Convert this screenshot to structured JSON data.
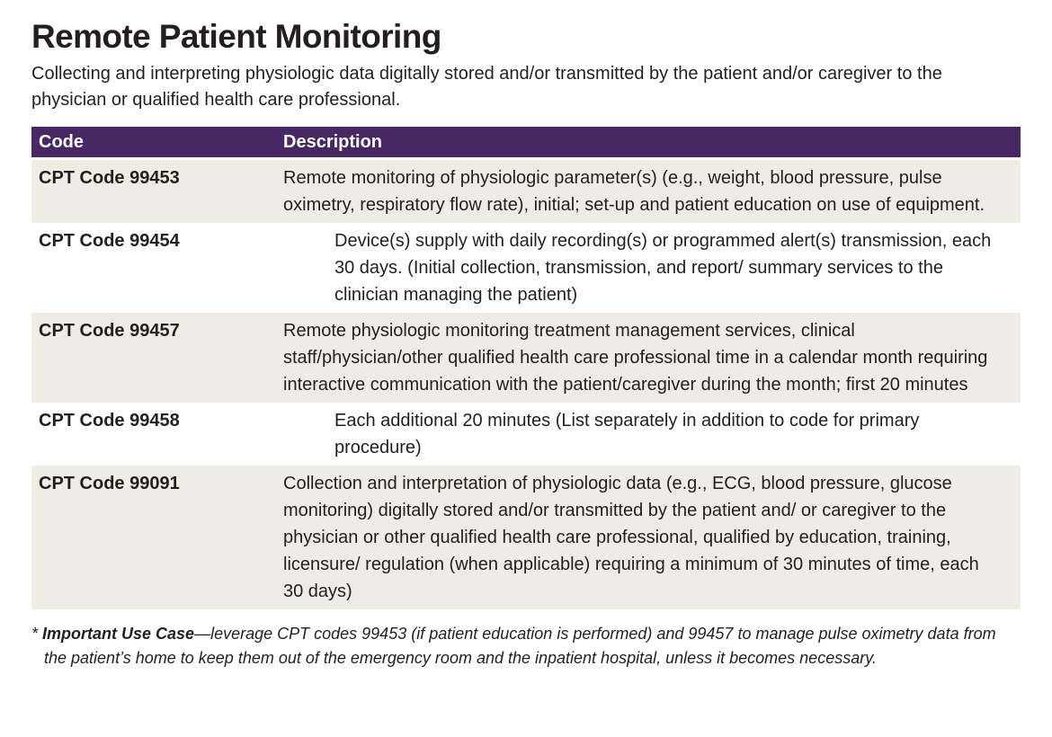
{
  "page": {
    "title": "Remote Patient Monitoring",
    "subtitle": "Collecting and interpreting physiologic data digitally stored and/or transmitted by the patient and/or caregiver to the physician or qualified health care professional."
  },
  "table": {
    "columns": {
      "code": "Code",
      "description": "Description"
    },
    "rows": [
      {
        "code": "CPT Code 99453",
        "description": "Remote monitoring of physiologic parameter(s) (e.g., weight, blood pressure, pulse oximetry, respiratory flow rate), initial; set-up and patient education on use of equipment.",
        "indent": false
      },
      {
        "code": "CPT Code 99454",
        "description": "Device(s) supply with daily recording(s) or programmed alert(s) transmission, each 30 days. (Initial collection, transmission, and report/ summary services to the clinician managing the patient)",
        "indent": true
      },
      {
        "code": "CPT Code 99457",
        "description": "Remote physiologic monitoring treatment management services, clinical staff/physician/other qualified health care professional time in a calendar month requiring interactive communication with the patient/caregiver during the month; first 20 minutes",
        "indent": false
      },
      {
        "code": "CPT Code 99458",
        "description": "Each additional 20 minutes (List separately in addition to code for primary procedure)",
        "indent": true
      },
      {
        "code": "CPT Code 99091",
        "description": "Collection and interpretation of physiologic data (e.g., ECG, blood pressure, glucose monitoring) digitally stored and/or transmitted by the patient and/ or caregiver to the physician or other qualified health care professional, qualified by education, training, licensure/ regulation (when applicable) requiring a minimum of 30 minutes of time, each 30 days)",
        "indent": false
      }
    ]
  },
  "footnote": {
    "marker": "* ",
    "lead": "Important Use Case",
    "text": "—leverage CPT codes 99453 (if patient education is performed) and 99457 to manage pulse oximetry data from the patient’s home to keep them out of the emergency room and the inpatient hospital, unless it becomes necessary."
  },
  "colors": {
    "header_bg": "#482764",
    "row_shaded_bg": "#efece6",
    "text": "#231f20",
    "header_text": "#ffffff"
  }
}
